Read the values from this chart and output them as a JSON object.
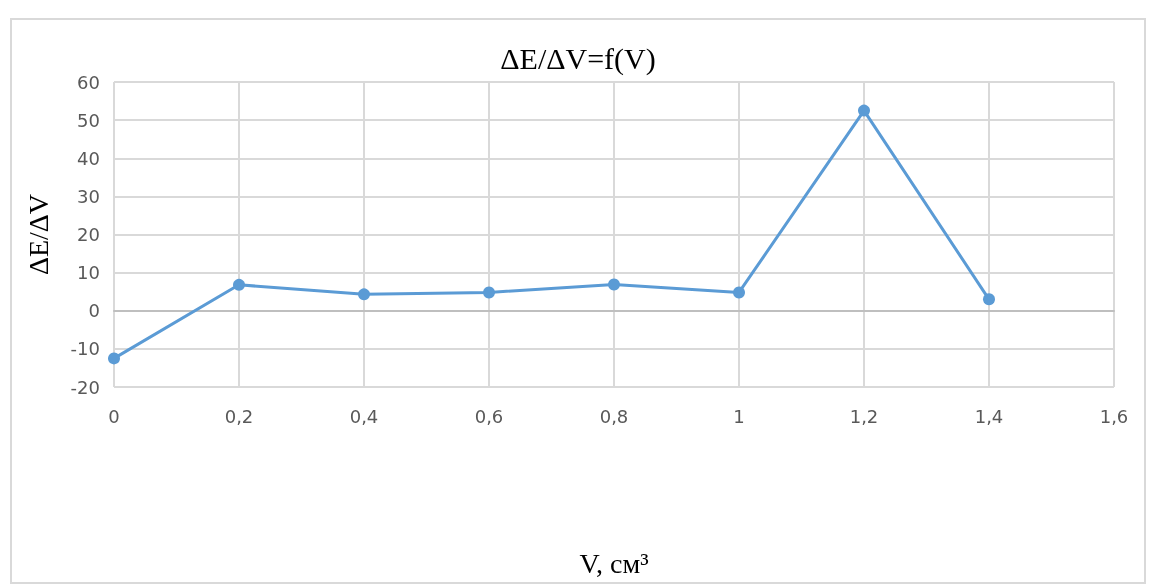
{
  "chart_data": {
    "type": "line",
    "title": "ΔE/ΔV=f(V)",
    "xlabel": "V, см³",
    "ylabel": "ΔE/ΔV",
    "x": [
      0,
      0.2,
      0.4,
      0.6,
      0.8,
      1,
      1.2,
      1.4
    ],
    "series": [
      {
        "color": "#5b9bd5",
        "values": [
          -12.5,
          6.8,
          4.3,
          4.8,
          6.9,
          4.8,
          52.5,
          3
        ]
      }
    ],
    "xlim": [
      0,
      1.6
    ],
    "xticks": [
      0,
      {
        "value": 0.2,
        "label": "0,2"
      },
      {
        "value": 0.4,
        "label": "0,4"
      },
      {
        "value": 0.6,
        "label": "0,6"
      },
      {
        "value": 0.8,
        "label": "0,8"
      },
      1,
      {
        "value": 1.2,
        "label": "1,2"
      },
      {
        "value": 1.4,
        "label": "1,4"
      },
      {
        "value": 1.6,
        "label": "1,6"
      }
    ],
    "ylim": [
      -20,
      60
    ],
    "yticks": [
      -20,
      -10,
      0,
      10,
      20,
      30,
      40,
      50,
      60
    ],
    "grid": true,
    "marker": "circle",
    "line_style": "solid"
  }
}
